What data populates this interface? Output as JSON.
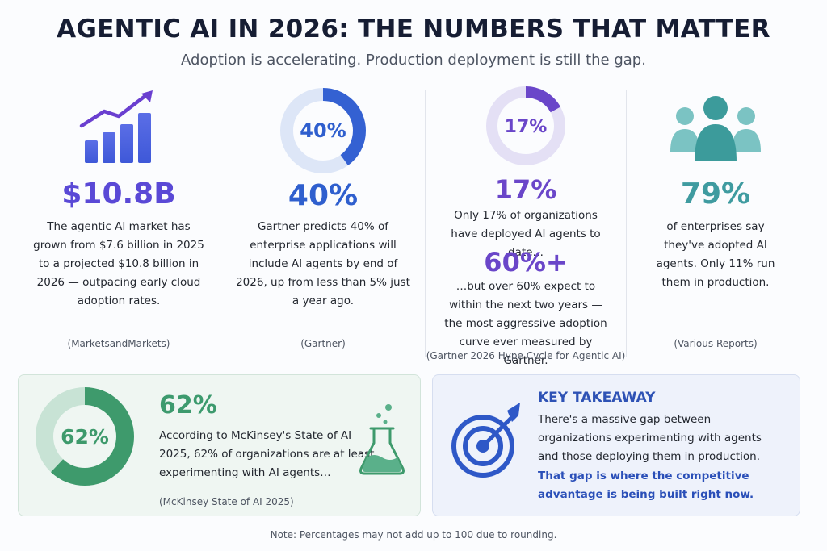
{
  "header": {
    "title": "AGENTIC AI IN 2026: THE NUMBERS THAT MATTER",
    "subtitle": "Adoption is accelerating. Production deployment is still the gap."
  },
  "columns": [
    {
      "icon": "bar-chart-growth-icon",
      "stat": "$10.8B",
      "stat_color": "#5a49d6",
      "description": "The agentic AI market has grown from $7.6 billion in 2025 to a projected $10.8 billion in 2026 — outpacing early cloud adoption rates.",
      "source": "(MarketsandMarkets)"
    },
    {
      "icon": "donut-40-icon",
      "donut_label": "40%",
      "donut_fraction": 0.4,
      "stat": "40%",
      "stat_color": "#2f5fce",
      "description": "Gartner predicts 40% of enterprise applications will include AI agents by end of 2026, up from less than 5% just a year ago.",
      "source": "(Gartner)"
    },
    {
      "icon": "donut-17-icon",
      "donut_label": "17%",
      "donut_fraction": 0.17,
      "stat": "17%",
      "stat_color": "#6a46c9",
      "description": "Only 17% of organizations have deployed AI agents to date…",
      "stat2": "60%+",
      "description2": "…but over 60% expect to within the next two years — the most aggressive adoption curve ever measured by Gartner.",
      "source": "(Gartner 2026 Hype Cycle for Agentic AI)"
    },
    {
      "icon": "people-group-icon",
      "stat": "79%",
      "stat_color": "#3f9ba0",
      "description": "of enterprises say they've adopted AI agents. Only 11% run them in production.",
      "source": "(Various Reports)"
    }
  ],
  "mckinsey": {
    "donut_label": "62%",
    "donut_fraction": 0.62,
    "stat": "62%",
    "description": "According to McKinsey's State of AI 2025, 62% of organizations are at least experimenting with AI agents…",
    "source": "(McKinsey State of AI 2025)",
    "icon": "flask-icon"
  },
  "takeaway": {
    "icon": "target-arrow-icon",
    "title": "KEY TAKEAWAY",
    "body": "There's a massive gap between organizations experimenting with agents and those deploying them in production.",
    "emphasis": "That gap is where the competitive advantage is being built right now."
  },
  "footer": {
    "note": "Note: Percentages may not add up to 100 due to rounding."
  }
}
